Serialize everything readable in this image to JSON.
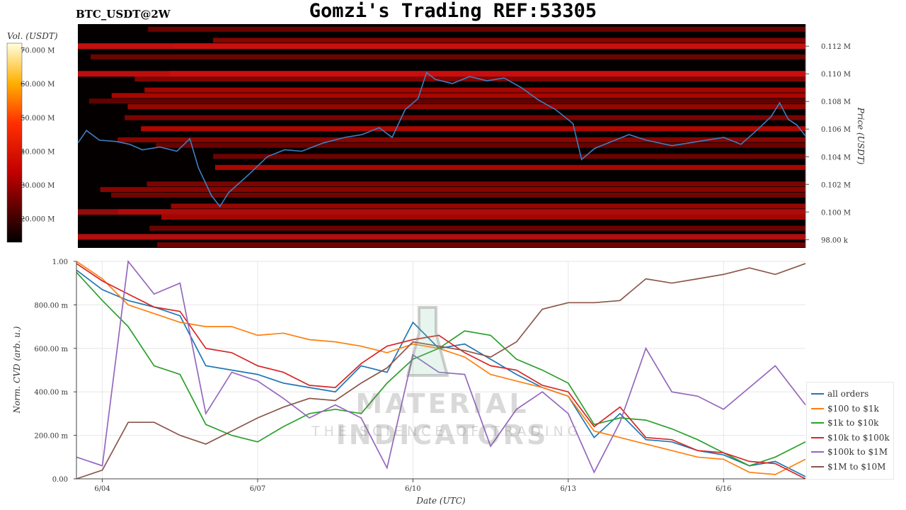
{
  "header": {
    "title": "Gomzi's Trading REF:53305",
    "pair": "BTC_USDT@2W"
  },
  "watermark": {
    "brand": "MATERIAL INDICATORS",
    "tagline": "THE SCIENCE OF TRADING",
    "icon": "flask-icon"
  },
  "chart_data": [
    {
      "type": "heatmap",
      "title": "",
      "colorbar": {
        "label": "Vol. (USDT)",
        "ticks": [
          "20.000 M",
          "30.000 M",
          "40.000 M",
          "50.000 M",
          "60.000 M",
          "70.000 M"
        ],
        "tick_values": [
          20,
          30,
          40,
          50,
          60,
          70
        ],
        "range": [
          13,
          72
        ],
        "colormap": "hot"
      },
      "ylabel": "Price (USDT)",
      "y_ticks": [
        "98.00 k",
        "0.100 M",
        "0.102 M",
        "0.104 M",
        "0.106 M",
        "0.108 M",
        "0.110 M",
        "0.112 M"
      ],
      "y_tick_values": [
        98000,
        100000,
        102000,
        104000,
        106000,
        108000,
        110000,
        112000
      ],
      "ylim": [
        97400,
        113600
      ],
      "x_start": "2025-06-03T12:00",
      "x_end": "2025-06-17T14:00",
      "price_line": {
        "color": "#3d7fc1",
        "points": [
          [
            "2025-06-03T12:00",
            105000
          ],
          [
            "2025-06-03T16:00",
            105900
          ],
          [
            "2025-06-03T22:00",
            105200
          ],
          [
            "2025-06-04T06:00",
            105100
          ],
          [
            "2025-06-04T12:00",
            104900
          ],
          [
            "2025-06-04T18:00",
            104500
          ],
          [
            "2025-06-05T02:00",
            104700
          ],
          [
            "2025-06-05T10:00",
            104400
          ],
          [
            "2025-06-05T16:00",
            105300
          ],
          [
            "2025-06-05T20:00",
            103200
          ],
          [
            "2025-06-06T02:00",
            101200
          ],
          [
            "2025-06-06T06:00",
            100400
          ],
          [
            "2025-06-06T10:00",
            101400
          ],
          [
            "2025-06-06T20:00",
            102800
          ],
          [
            "2025-06-07T04:00",
            104000
          ],
          [
            "2025-06-07T12:00",
            104500
          ],
          [
            "2025-06-07T20:00",
            104400
          ],
          [
            "2025-06-08T06:00",
            105000
          ],
          [
            "2025-06-08T16:00",
            105400
          ],
          [
            "2025-06-09T00:00",
            105600
          ],
          [
            "2025-06-09T08:00",
            106100
          ],
          [
            "2025-06-09T14:00",
            105400
          ],
          [
            "2025-06-09T20:00",
            107400
          ],
          [
            "2025-06-10T02:00",
            108200
          ],
          [
            "2025-06-10T06:00",
            110100
          ],
          [
            "2025-06-10T10:00",
            109600
          ],
          [
            "2025-06-10T18:00",
            109300
          ],
          [
            "2025-06-11T02:00",
            109800
          ],
          [
            "2025-06-11T10:00",
            109500
          ],
          [
            "2025-06-11T18:00",
            109700
          ],
          [
            "2025-06-12T02:00",
            109000
          ],
          [
            "2025-06-12T10:00",
            108100
          ],
          [
            "2025-06-12T18:00",
            107400
          ],
          [
            "2025-06-13T02:00",
            106400
          ],
          [
            "2025-06-13T06:00",
            103800
          ],
          [
            "2025-06-13T12:00",
            104600
          ],
          [
            "2025-06-13T20:00",
            105100
          ],
          [
            "2025-06-14T04:00",
            105600
          ],
          [
            "2025-06-14T12:00",
            105200
          ],
          [
            "2025-06-15T00:00",
            104800
          ],
          [
            "2025-06-15T12:00",
            105100
          ],
          [
            "2025-06-16T00:00",
            105400
          ],
          [
            "2025-06-16T08:00",
            104900
          ],
          [
            "2025-06-16T16:00",
            106000
          ],
          [
            "2025-06-16T22:00",
            106900
          ],
          [
            "2025-06-17T02:00",
            107900
          ],
          [
            "2025-06-17T06:00",
            106700
          ],
          [
            "2025-06-17T10:00",
            106300
          ],
          [
            "2025-06-17T14:00",
            105500
          ]
        ]
      }
    },
    {
      "type": "line",
      "title": "",
      "xlabel": "Date (UTC)",
      "ylabel": "Norm. CVD (arb. u.)",
      "ylim": [
        0,
        1
      ],
      "y_ticks": [
        "0.00",
        "200.00 m",
        "400.00 m",
        "600.00 m",
        "800.00 m",
        "1.00"
      ],
      "y_tick_values": [
        0,
        0.2,
        0.4,
        0.6,
        0.8,
        1.0
      ],
      "x_ticks": [
        "6/04",
        "6/07",
        "6/10",
        "6/13",
        "6/16"
      ],
      "x_tick_values": [
        "2025-06-04",
        "2025-06-07",
        "2025-06-10",
        "2025-06-13",
        "2025-06-16"
      ],
      "x_start": "2025-06-03T12:00",
      "x_end": "2025-06-17T14:00",
      "grid": true,
      "legend": "right",
      "x": [
        "2025-06-03T12:00",
        "2025-06-04T00:00",
        "2025-06-04T12:00",
        "2025-06-05T00:00",
        "2025-06-05T12:00",
        "2025-06-06T00:00",
        "2025-06-06T12:00",
        "2025-06-07T00:00",
        "2025-06-07T12:00",
        "2025-06-08T00:00",
        "2025-06-08T12:00",
        "2025-06-09T00:00",
        "2025-06-09T12:00",
        "2025-06-10T00:00",
        "2025-06-10T12:00",
        "2025-06-11T00:00",
        "2025-06-11T12:00",
        "2025-06-12T00:00",
        "2025-06-12T12:00",
        "2025-06-13T00:00",
        "2025-06-13T12:00",
        "2025-06-14T00:00",
        "2025-06-14T12:00",
        "2025-06-15T00:00",
        "2025-06-15T12:00",
        "2025-06-16T00:00",
        "2025-06-16T12:00",
        "2025-06-17T00:00",
        "2025-06-17T14:00"
      ],
      "series": [
        {
          "name": "all orders",
          "color": "#1f77b4",
          "values": [
            0.96,
            0.87,
            0.82,
            0.79,
            0.75,
            0.52,
            0.5,
            0.48,
            0.44,
            0.42,
            0.4,
            0.52,
            0.49,
            0.72,
            0.6,
            0.62,
            0.55,
            0.48,
            0.42,
            0.38,
            0.19,
            0.3,
            0.18,
            0.17,
            0.13,
            0.11,
            0.06,
            0.08,
            0.01
          ]
        },
        {
          "name": "$100 to $1k",
          "color": "#ff7f0e",
          "values": [
            1.0,
            0.92,
            0.8,
            0.76,
            0.72,
            0.7,
            0.7,
            0.66,
            0.67,
            0.64,
            0.63,
            0.61,
            0.58,
            0.62,
            0.6,
            0.56,
            0.48,
            0.45,
            0.42,
            0.38,
            0.22,
            0.19,
            0.16,
            0.13,
            0.1,
            0.09,
            0.03,
            0.02,
            0.09
          ]
        },
        {
          "name": "$1k to $10k",
          "color": "#2ca02c",
          "values": [
            0.95,
            0.82,
            0.7,
            0.52,
            0.48,
            0.25,
            0.2,
            0.17,
            0.24,
            0.3,
            0.32,
            0.3,
            0.44,
            0.55,
            0.6,
            0.68,
            0.66,
            0.55,
            0.5,
            0.44,
            0.25,
            0.28,
            0.27,
            0.23,
            0.18,
            0.12,
            0.06,
            0.1,
            0.17
          ]
        },
        {
          "name": "$10k to $100k",
          "color": "#d62728",
          "values": [
            0.99,
            0.91,
            0.85,
            0.79,
            0.77,
            0.6,
            0.58,
            0.52,
            0.49,
            0.43,
            0.42,
            0.53,
            0.61,
            0.64,
            0.66,
            0.58,
            0.52,
            0.5,
            0.43,
            0.4,
            0.24,
            0.33,
            0.19,
            0.18,
            0.13,
            0.12,
            0.08,
            0.07,
            0.0
          ]
        },
        {
          "name": "$100k to $1M",
          "color": "#9467bd",
          "values": [
            0.1,
            0.06,
            1.0,
            0.85,
            0.9,
            0.3,
            0.49,
            0.45,
            0.37,
            0.28,
            0.34,
            0.28,
            0.05,
            0.57,
            0.49,
            0.48,
            0.15,
            0.32,
            0.4,
            0.3,
            0.03,
            0.26,
            0.6,
            0.4,
            0.38,
            0.32,
            0.42,
            0.52,
            0.34
          ]
        },
        {
          "name": "$1M to $10M",
          "color": "#8c564b",
          "values": [
            0.0,
            0.04,
            0.26,
            0.26,
            0.2,
            0.16,
            0.22,
            0.28,
            0.33,
            0.37,
            0.36,
            0.44,
            0.51,
            0.63,
            0.61,
            0.59,
            0.56,
            0.63,
            0.78,
            0.81,
            0.81,
            0.82,
            0.92,
            0.9,
            0.92,
            0.94,
            0.97,
            0.94,
            0.99
          ]
        }
      ]
    }
  ]
}
